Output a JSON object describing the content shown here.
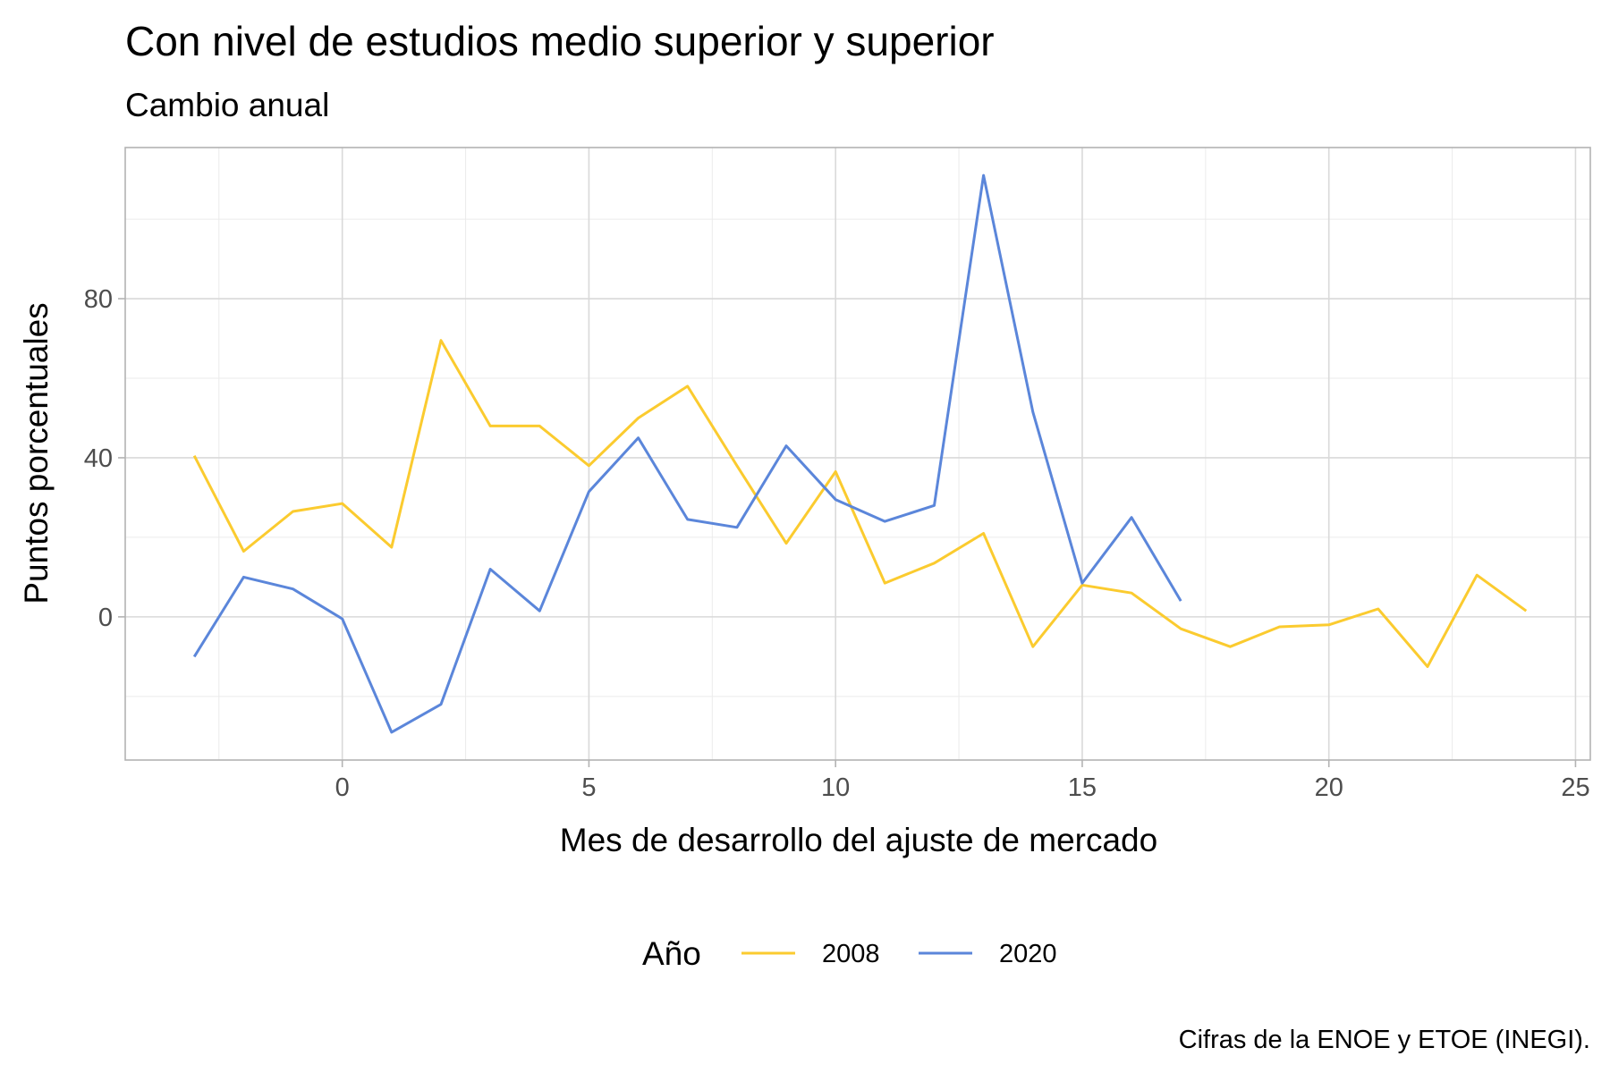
{
  "chart_data": {
    "type": "line",
    "title": "Con nivel de estudios medio superior y superior",
    "subtitle": "Cambio anual",
    "xlabel": "Mes de desarrollo del ajuste de mercado",
    "ylabel": "Puntos porcentuales",
    "caption": "Cifras de la ENOE y ETOE (INEGI).",
    "xlim": [
      -4.4,
      25.3
    ],
    "ylim": [
      -36,
      118
    ],
    "x_ticks": [
      0,
      5,
      10,
      15,
      20,
      25
    ],
    "y_ticks": [
      0,
      40,
      80
    ],
    "grid": true,
    "legend": {
      "title": "Año",
      "position": "bottom"
    },
    "series": [
      {
        "name": "2008",
        "color": "#FBCB2F",
        "x": [
          -3,
          -2,
          -1,
          0,
          1,
          2,
          3,
          4,
          5,
          6,
          7,
          8,
          9,
          10,
          11,
          12,
          13,
          14,
          15,
          16,
          17,
          18,
          19,
          20,
          21,
          22,
          23,
          24
        ],
        "y": [
          40.5,
          16.5,
          26.5,
          28.5,
          17.5,
          69.5,
          48,
          48,
          38,
          50,
          58,
          38,
          18.5,
          36.5,
          8.5,
          13.5,
          21,
          -7.5,
          8,
          6,
          -3,
          -7.5,
          -2.5,
          -2,
          2,
          -12.5,
          10.5,
          1.5
        ]
      },
      {
        "name": "2020",
        "color": "#5B86DA",
        "x": [
          -3,
          -2,
          -1,
          0,
          1,
          2,
          3,
          4,
          5,
          6,
          7,
          8,
          9,
          10,
          11,
          12,
          13,
          14,
          15,
          16,
          17
        ],
        "y": [
          -10,
          10,
          7,
          -0.5,
          -29,
          -22,
          12,
          1.5,
          31.5,
          45,
          24.5,
          22.5,
          43,
          29.5,
          24,
          28,
          111,
          51.5,
          8.5,
          25,
          4
        ]
      }
    ]
  }
}
